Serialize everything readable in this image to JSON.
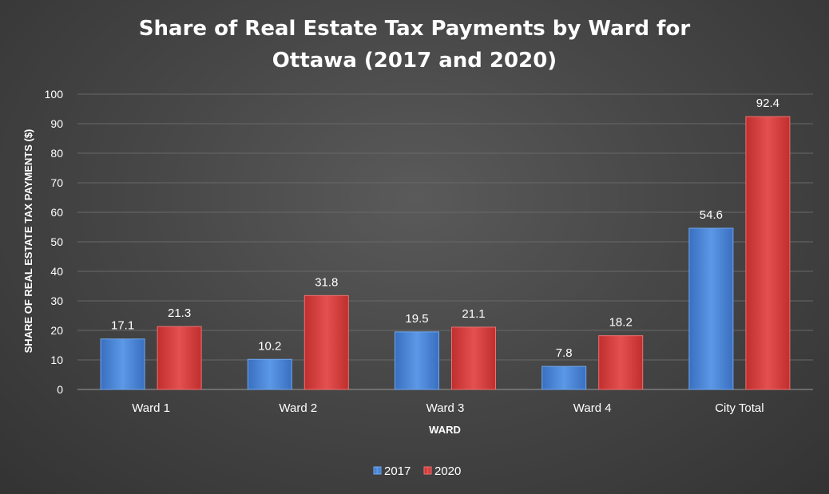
{
  "chart_data": {
    "type": "bar",
    "title_lines": [
      "Share of Real Estate Tax Payments by Ward for",
      "Ottawa (2017 and 2020)"
    ],
    "xlabel": "WARD",
    "ylabel": "SHARE OF REAL ESTATE TAX PAYMENTS ($)",
    "categories": [
      "Ward 1",
      "Ward 2",
      "Ward 3",
      "Ward 4",
      "City Total"
    ],
    "series": [
      {
        "name": "2017",
        "values": [
          17.1,
          10.2,
          19.5,
          7.8,
          54.6
        ],
        "color": "#4a86d8"
      },
      {
        "name": "2020",
        "values": [
          21.3,
          31.8,
          21.1,
          18.2,
          92.4
        ],
        "color": "#dc4040"
      }
    ],
    "ylim": [
      0,
      100
    ],
    "yticks": [
      0,
      10,
      20,
      30,
      40,
      50,
      60,
      70,
      80,
      90,
      100
    ],
    "grid": true,
    "legend_position": "bottom"
  }
}
